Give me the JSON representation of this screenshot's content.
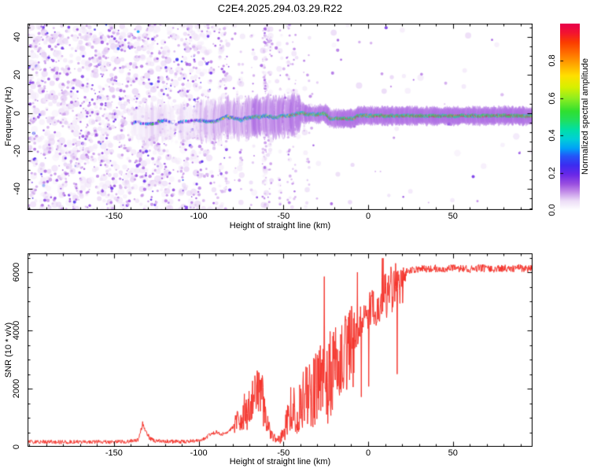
{
  "title": "C2E4.2025.294.03.29.R22",
  "colors": {
    "background": "#ffffff",
    "frame": "#000000",
    "snr_line": "#f5342c",
    "colorbar_top": "#e8004c"
  },
  "colormap_stops": [
    [
      0.0,
      "#ffffff"
    ],
    [
      0.05,
      "#ecdcf7"
    ],
    [
      0.1,
      "#c18ae8"
    ],
    [
      0.14,
      "#9a4fe0"
    ],
    [
      0.19,
      "#6a28e8"
    ],
    [
      0.24,
      "#3c2cf0"
    ],
    [
      0.29,
      "#2356f8"
    ],
    [
      0.33,
      "#00a0f8"
    ],
    [
      0.38,
      "#00cfd8"
    ],
    [
      0.43,
      "#00dfa8"
    ],
    [
      0.48,
      "#20df60"
    ],
    [
      0.53,
      "#30e030"
    ],
    [
      0.6,
      "#90ee20"
    ],
    [
      0.66,
      "#d8f000"
    ],
    [
      0.72,
      "#ffe000"
    ],
    [
      0.78,
      "#ffa800"
    ],
    [
      0.84,
      "#ff7000"
    ],
    [
      0.9,
      "#fb3c00"
    ],
    [
      0.95,
      "#f31430"
    ],
    [
      1.0,
      "#e8004c"
    ]
  ],
  "chart_data": [
    {
      "type": "heatmap",
      "title": "",
      "xlabel": "Height of straight line (km)",
      "ylabel": "Frequency (Hz)",
      "xlim": [
        -201,
        97
      ],
      "ylim": [
        -51,
        47
      ],
      "xticks": [
        -150,
        -100,
        -50,
        0,
        50
      ],
      "yticks": [
        -40,
        -20,
        0,
        20,
        40
      ],
      "x_minor_step": 10,
      "y_minor_step": 5,
      "grid": false,
      "colorbar": {
        "label": "Normalized spectral amplitude",
        "ticks": [
          0.0,
          0.2,
          0.4,
          0.6,
          0.8
        ],
        "range": [
          0,
          1
        ]
      },
      "noise_field": {
        "description": "dense violet speckle noise left of -100 km fading out by -80 km; sparse speckle and vertical streak columns beyond",
        "dense_until": -100,
        "fade_until": -88,
        "sparse_until": -78
      },
      "streak_columns": [
        {
          "x": -87,
          "n": 35
        },
        {
          "x": -84,
          "n": 45
        },
        {
          "x": -75,
          "n": 25
        },
        {
          "x": -68,
          "n": 18
        },
        {
          "x": -61,
          "n": 110
        },
        {
          "x": -58,
          "n": 55
        },
        {
          "x": -52,
          "n": 20
        },
        {
          "x": -47,
          "n": 40
        },
        {
          "x": -44,
          "n": 25
        },
        {
          "x": -36,
          "n": 20
        }
      ],
      "sparse_dots": [
        [
          -30,
          16
        ],
        [
          -21,
          21
        ],
        [
          -18,
          33
        ],
        [
          -16,
          28
        ],
        [
          -48,
          20
        ],
        [
          -57,
          30
        ],
        [
          -63,
          25
        ],
        [
          -44,
          12
        ],
        [
          -33,
          10
        ]
      ],
      "signal_trace": {
        "description": "atmospheric signal: faint blue trace near -5 Hz starting ~ -140 km, strengthening through cyan/green/yellow, stepping to -3 Hz between -22 and -6 km, then a tight red line at -1.5 Hz to the right edge",
        "points_x_hz_amp": [
          [
            -140,
            -5.0,
            0.15
          ],
          [
            -135,
            -4.5,
            0.3
          ],
          [
            -130,
            -5.5,
            0.35
          ],
          [
            -125,
            -5.0,
            0.25
          ],
          [
            -120,
            -4.0,
            0.25
          ],
          [
            -115,
            -5.0,
            0.3
          ],
          [
            -110,
            -4.5,
            0.3
          ],
          [
            -105,
            -4.0,
            0.3
          ],
          [
            -100,
            -3.5,
            0.35
          ],
          [
            -95,
            -4.5,
            0.45
          ],
          [
            -90,
            -5.0,
            0.5
          ],
          [
            -85,
            -3.0,
            0.5
          ],
          [
            -80,
            -2.5,
            0.55
          ],
          [
            -75,
            -3.5,
            0.6
          ],
          [
            -70,
            -2.0,
            0.65
          ],
          [
            -65,
            -1.5,
            0.7
          ],
          [
            -60,
            -2.0,
            0.7
          ],
          [
            -55,
            -2.5,
            0.7
          ],
          [
            -50,
            -2.0,
            0.75
          ],
          [
            -45,
            -1.0,
            0.8
          ],
          [
            -40,
            -0.5,
            0.8
          ],
          [
            -35,
            0.0,
            0.85
          ],
          [
            -30,
            -0.3,
            0.85
          ],
          [
            -25,
            -0.5,
            0.9
          ],
          [
            -22,
            -3.0,
            0.9
          ],
          [
            -15,
            -3.0,
            0.92
          ],
          [
            -8,
            -3.0,
            0.92
          ],
          [
            -6,
            -1.5,
            0.95
          ],
          [
            0,
            -1.5,
            0.95
          ],
          [
            20,
            -1.5,
            0.95
          ],
          [
            50,
            -1.5,
            0.95
          ],
          [
            97,
            -1.5,
            0.95
          ]
        ]
      }
    },
    {
      "type": "line",
      "title": "",
      "xlabel": "Height of straight line (km)",
      "ylabel": "SNR (10 * v/v)",
      "xlim": [
        -201,
        97
      ],
      "ylim": [
        0,
        6650
      ],
      "xticks": [
        -150,
        -100,
        -50,
        0,
        50
      ],
      "yticks": [
        0,
        2000,
        4000,
        6000
      ],
      "x_minor_step": 10,
      "y_minor_step": 500,
      "grid": false,
      "line_color": "#f5342c",
      "envelope_points": [
        [
          -200,
          170
        ],
        [
          -190,
          170
        ],
        [
          -180,
          165
        ],
        [
          -170,
          175
        ],
        [
          -160,
          170
        ],
        [
          -150,
          170
        ],
        [
          -142,
          175
        ],
        [
          -136,
          220
        ],
        [
          -133,
          780
        ],
        [
          -131,
          520
        ],
        [
          -129,
          300
        ],
        [
          -126,
          210
        ],
        [
          -120,
          185
        ],
        [
          -112,
          180
        ],
        [
          -104,
          190
        ],
        [
          -98,
          240
        ],
        [
          -93,
          420
        ],
        [
          -89,
          520
        ],
        [
          -86,
          420
        ],
        [
          -83,
          520
        ],
        [
          -80,
          650
        ],
        [
          -77,
          900
        ],
        [
          -73,
          1050
        ],
        [
          -69,
          1500
        ],
        [
          -66,
          1950
        ],
        [
          -64,
          2200
        ],
        [
          -62,
          1600
        ],
        [
          -60,
          950
        ],
        [
          -58,
          520
        ],
        [
          -56,
          330
        ],
        [
          -53,
          290
        ],
        [
          -51,
          420
        ],
        [
          -49,
          800
        ],
        [
          -47,
          1250
        ],
        [
          -45,
          1650
        ],
        [
          -43,
          1500
        ],
        [
          -41,
          1700
        ],
        [
          -39,
          2000
        ],
        [
          -37,
          2200
        ],
        [
          -35,
          2300
        ],
        [
          -33,
          2250
        ],
        [
          -31,
          2500
        ],
        [
          -29,
          2450
        ],
        [
          -27,
          2700
        ],
        [
          -25,
          2800
        ],
        [
          -23,
          2850
        ],
        [
          -21,
          3000
        ],
        [
          -19,
          3200
        ],
        [
          -17,
          3300
        ],
        [
          -15,
          3400
        ],
        [
          -13,
          3550
        ],
        [
          -11,
          3700
        ],
        [
          -9,
          3900
        ],
        [
          -7,
          4100
        ],
        [
          -5,
          4300
        ],
        [
          -3,
          4500
        ],
        [
          -1,
          4650
        ],
        [
          1,
          4750
        ],
        [
          3,
          4900
        ],
        [
          5,
          5000
        ],
        [
          7,
          5150
        ],
        [
          9,
          5300
        ],
        [
          11,
          5400
        ],
        [
          13,
          5500
        ],
        [
          15,
          5650
        ],
        [
          17,
          5750
        ],
        [
          19,
          5850
        ],
        [
          21,
          5950
        ],
        [
          24,
          6050
        ],
        [
          27,
          6100
        ],
        [
          30,
          6120
        ],
        [
          35,
          6100
        ],
        [
          40,
          6130
        ],
        [
          45,
          6100
        ],
        [
          50,
          6150
        ],
        [
          55,
          6120
        ],
        [
          60,
          6100
        ],
        [
          65,
          6150
        ],
        [
          70,
          6120
        ],
        [
          75,
          6100
        ],
        [
          80,
          6150
        ],
        [
          85,
          6120
        ],
        [
          90,
          6150
        ],
        [
          94,
          6100
        ],
        [
          97,
          6150
        ]
      ],
      "spikes": [
        [
          -133,
          870
        ],
        [
          -26,
          5850
        ],
        [
          -6.3,
          6000
        ]
      ],
      "noise_model": [
        {
          "until": -79,
          "type": "add",
          "amp": 70
        },
        {
          "until": -57,
          "type": "mult",
          "lo": 0.55,
          "hi": 1.45
        },
        {
          "until": -52,
          "type": "add",
          "amp": 160
        },
        {
          "until": -20,
          "type": "mult",
          "lo": 0.28,
          "hi": 1.38
        },
        {
          "until": -8,
          "type": "mult",
          "lo": 0.5,
          "hi": 1.3
        },
        {
          "until": 22,
          "type": "mult",
          "lo": 0.82,
          "hi": 1.12
        },
        {
          "until": 97,
          "type": "add",
          "amp": 130
        }
      ]
    }
  ]
}
